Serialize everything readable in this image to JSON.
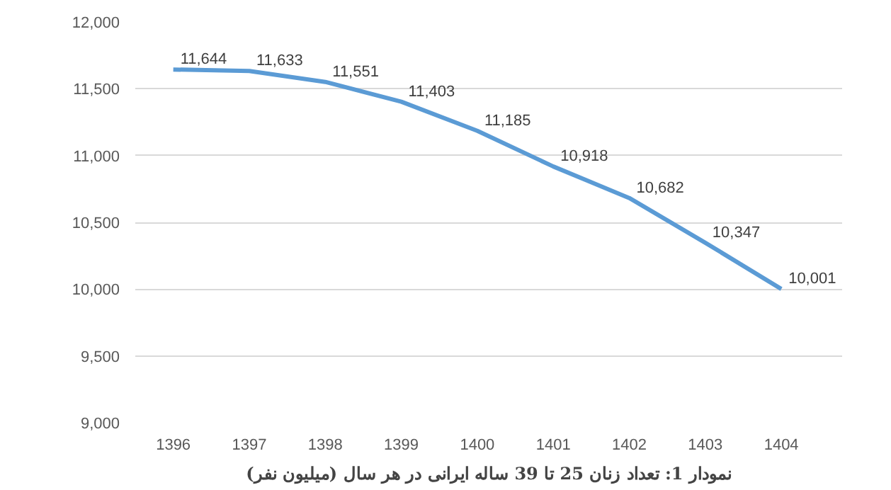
{
  "chart_data": {
    "type": "line",
    "title": "نمودار 1: تعداد زنان 25 تا 39 ساله ایرانی در هر سال (میلیون نفر)",
    "categories": [
      "1396",
      "1397",
      "1398",
      "1399",
      "1400",
      "1401",
      "1402",
      "1403",
      "1404"
    ],
    "series": [
      {
        "color": "#5b9bd5",
        "values": [
          11644,
          11633,
          11551,
          11403,
          11185,
          10918,
          10682,
          10347,
          10001
        ],
        "value_labels": [
          "11,644",
          "11,633",
          "11,551",
          "11,403",
          "11,185",
          "10,918",
          "10,682",
          "10,347",
          "10,001"
        ]
      }
    ],
    "ylim": [
      9000,
      12000
    ],
    "yticks": [
      {
        "value": 9000,
        "label": "9,000"
      },
      {
        "value": 9500,
        "label": "9,500"
      },
      {
        "value": 10000,
        "label": "10,000"
      },
      {
        "value": 10500,
        "label": "10,500"
      },
      {
        "value": 11000,
        "label": "11,000"
      },
      {
        "value": 11500,
        "label": "11,500"
      },
      {
        "value": 12000,
        "label": "12,000"
      }
    ],
    "grid": "y",
    "marker": "none",
    "line_style": "solid"
  }
}
